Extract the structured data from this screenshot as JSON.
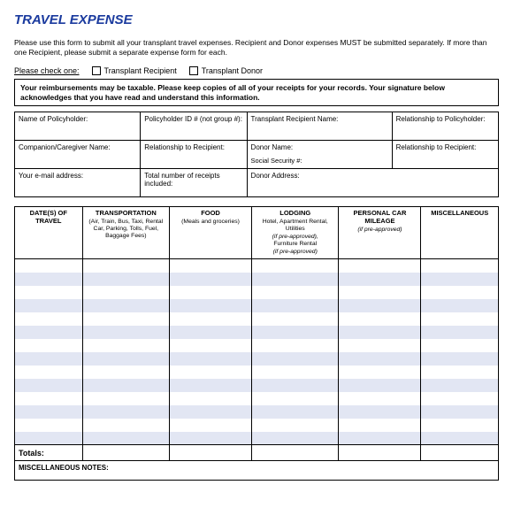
{
  "title": "TRAVEL EXPENSE",
  "instructions": "Please use this form to submit all your transplant travel expenses. Recipient and Donor expenses MUST be submitted separately. If more than one Recipient, please submit a separate expense form for each.",
  "check": {
    "label": "Please check one:",
    "opt1": "Transplant Recipient",
    "opt2": "Transplant Donor"
  },
  "ack": "Your reimbursements may be taxable. Please keep copies of all of your receipts for your records. Your signature below acknowledges that you have read and understand this information.",
  "info": {
    "r1c1": "Name of Policyholder:",
    "r1c2": "Policyholder ID # (not group #):",
    "r1c3": "Transplant Recipient Name:",
    "r1c4": "Relationship to Policyholder:",
    "r2c1": "Companion/Caregiver Name:",
    "r2c2": "Relationship to Recipient:",
    "r2c3a": "Donor Name:",
    "r2c3b": "Social Security #:",
    "r2c4": "Relationship to  Recipient:",
    "r3c1": "Your e-mail address:",
    "r3c2": "Total number of receipts included:",
    "r3c3": "Donor Address:"
  },
  "cols": {
    "c1": "DATE(S) OF TRAVEL",
    "c2": "TRANSPORTATION",
    "c2s": "(Air, Train, Bus,  Taxi, Rental Car,  Parking, Tolls,  Fuel, Baggage Fees)",
    "c3": "FOOD",
    "c3s": "(Meals and  groceries)",
    "c4": "LODGING",
    "c4s": "Hotel, Apartment Rental, Utilities",
    "c4i": "(if pre-approved),",
    "c4s2": "Furniture Rental",
    "c4i2": "(if pre-approved)",
    "c5": "PERSONAL CAR MILEAGE",
    "c5i": "(if pre-approved)",
    "c6": "MISCELLANEOUS"
  },
  "totals": "Totals:",
  "notes": "MISCELLANEOUS NOTES:",
  "style": {
    "title_color": "#1a3a9e",
    "alt_row_color": "#e2e6f3",
    "border_color": "#000000",
    "col_widths_pct": [
      14,
      18,
      17,
      18,
      17,
      16
    ],
    "data_rows": 14
  }
}
